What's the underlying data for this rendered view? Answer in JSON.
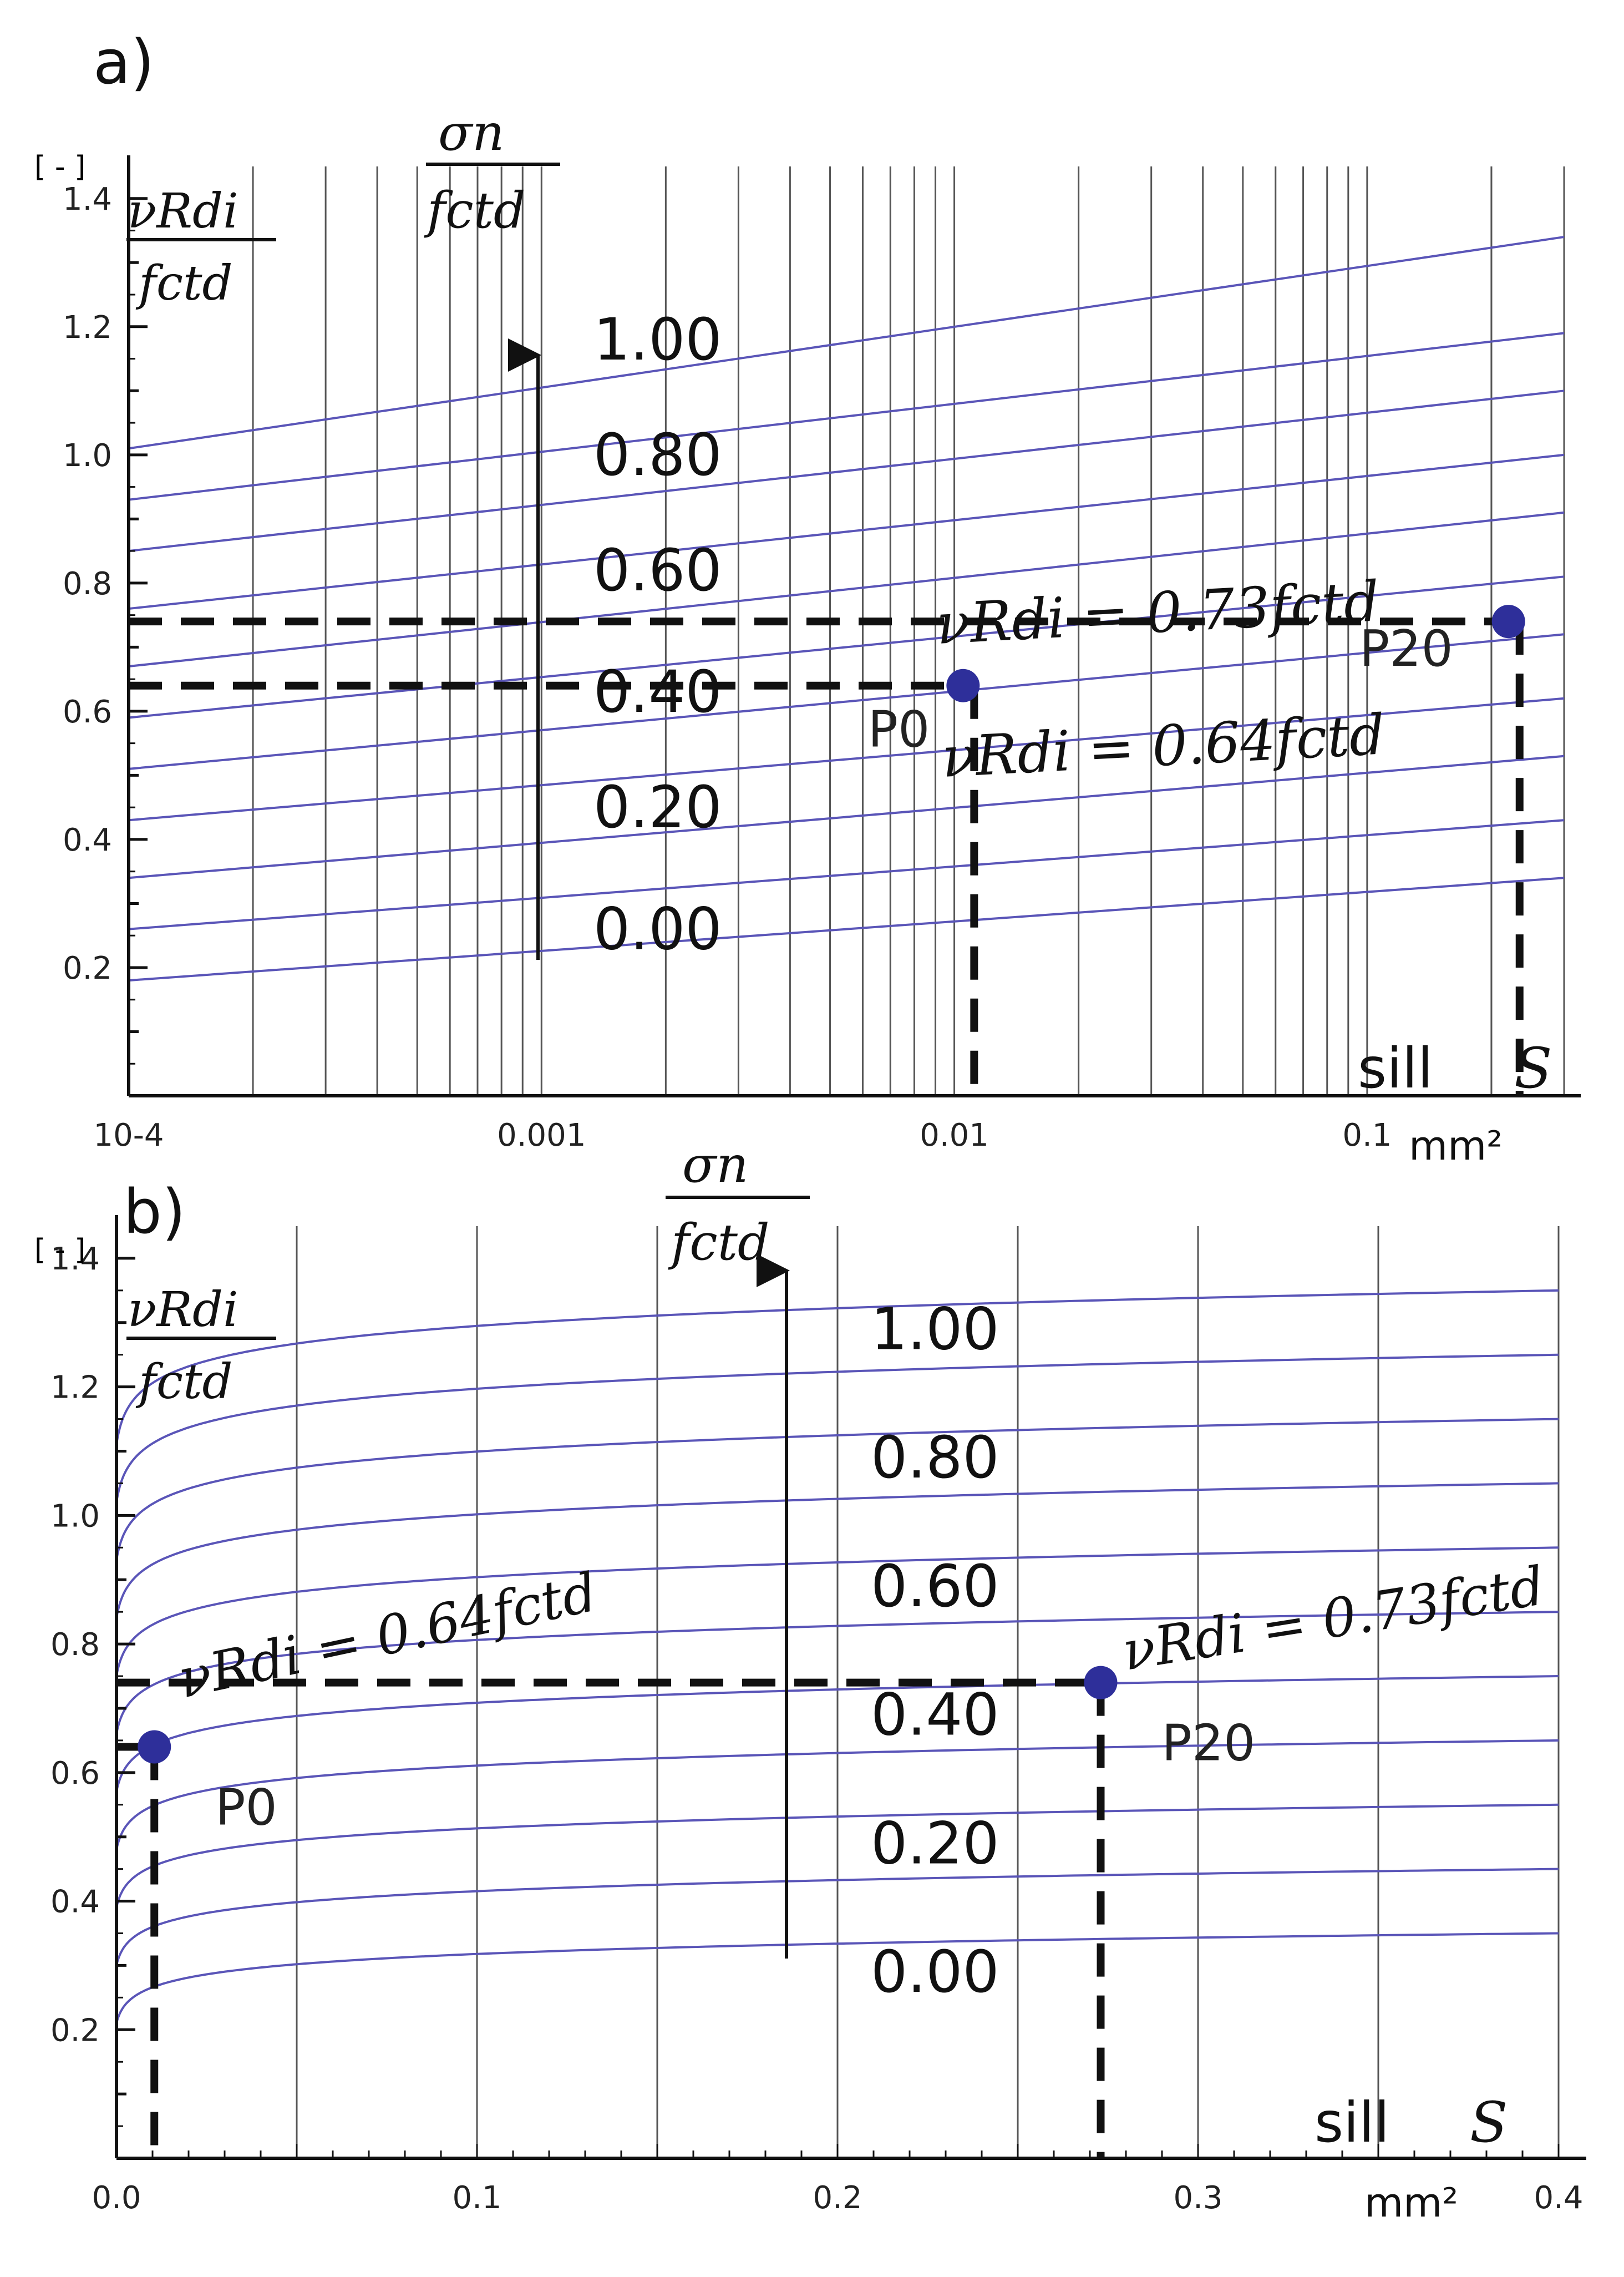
{
  "chart_data": [
    {
      "type": "line",
      "panel_label": "a)",
      "x_scale": "log",
      "xlim": [
        0.0001,
        0.3
      ],
      "ylim": [
        0,
        1.45
      ],
      "x_tick_labels": [
        "10-4",
        "0.001",
        "0.01",
        "0.1"
      ],
      "x_tick_values": [
        0.0001,
        0.001,
        0.01,
        0.1
      ],
      "x_unit": "mm²",
      "y_ticks": [
        0.2,
        0.4,
        0.6,
        0.8,
        1.0,
        1.2,
        1.4
      ],
      "y_tick_labels": [
        "0.2",
        "0.4",
        "0.6",
        "0.8",
        "1.0",
        "1.2",
        "1.4"
      ],
      "y_unit": "[ - ]",
      "ylabel_num": "νRdi",
      "ylabel_den": "fctd",
      "param_label_num": "σn",
      "param_label_den": "fctd",
      "sill_label": "sill",
      "s_label": "S",
      "grid": true,
      "series": [
        {
          "sigma": 0.0,
          "y_at_xmin": 0.18,
          "y_at_xmax": 0.34
        },
        {
          "sigma": 0.1,
          "y_at_xmin": 0.26,
          "y_at_xmax": 0.43
        },
        {
          "sigma": 0.2,
          "y_at_xmin": 0.34,
          "y_at_xmax": 0.53
        },
        {
          "sigma": 0.3,
          "y_at_xmin": 0.43,
          "y_at_xmax": 0.62
        },
        {
          "sigma": 0.4,
          "y_at_xmin": 0.51,
          "y_at_xmax": 0.72
        },
        {
          "sigma": 0.5,
          "y_at_xmin": 0.59,
          "y_at_xmax": 0.81
        },
        {
          "sigma": 0.6,
          "y_at_xmin": 0.67,
          "y_at_xmax": 0.91
        },
        {
          "sigma": 0.7,
          "y_at_xmin": 0.76,
          "y_at_xmax": 1.0
        },
        {
          "sigma": 0.8,
          "y_at_xmin": 0.85,
          "y_at_xmax": 1.1
        },
        {
          "sigma": 0.9,
          "y_at_xmin": 0.93,
          "y_at_xmax": 1.19
        },
        {
          "sigma": 1.0,
          "y_at_xmin": 1.01,
          "y_at_xmax": 1.34
        }
      ],
      "curve_labels": [
        {
          "text": "1.00",
          "y": 1.18
        },
        {
          "text": "0.80",
          "y": 1.0
        },
        {
          "text": "0.60",
          "y": 0.82
        },
        {
          "text": "0.40",
          "y": 0.63
        },
        {
          "text": "0.20",
          "y": 0.45
        },
        {
          "text": "0.00",
          "y": 0.26
        }
      ],
      "points": [
        {
          "label": "P0",
          "x": 0.0105,
          "y": 0.64
        },
        {
          "label": "P20",
          "x": 0.22,
          "y": 0.74
        }
      ],
      "annotations": [
        {
          "lhs": "νRdi",
          "rhs": "0.73fctd"
        },
        {
          "lhs": "νRdi",
          "rhs": "0.64fctd"
        }
      ]
    },
    {
      "type": "line",
      "panel_label": "b)",
      "x_scale": "linear",
      "xlim": [
        0,
        0.4
      ],
      "ylim": [
        0,
        1.45
      ],
      "x_tick_labels": [
        "0.0",
        "0.1",
        "0.2",
        "0.3",
        "0.4"
      ],
      "x_tick_values": [
        0,
        0.1,
        0.2,
        0.3,
        0.4
      ],
      "x_unit": "mm²",
      "y_ticks": [
        0.2,
        0.4,
        0.6,
        0.8,
        1.0,
        1.2,
        1.4
      ],
      "y_tick_labels": [
        "0.2",
        "0.4",
        "0.6",
        "0.8",
        "1.0",
        "1.2",
        "1.4"
      ],
      "y_unit": "[ - ]",
      "ylabel_num": "νRdi",
      "ylabel_den": "fctd",
      "param_label_num": "σn",
      "param_label_den": "fctd",
      "sill_label": "sill",
      "s_label": "S",
      "grid": true,
      "series": [
        {
          "sigma": 0.0,
          "y_start": 0.21,
          "y_end": 0.35
        },
        {
          "sigma": 0.1,
          "y_start": 0.3,
          "y_end": 0.45
        },
        {
          "sigma": 0.2,
          "y_start": 0.39,
          "y_end": 0.55
        },
        {
          "sigma": 0.3,
          "y_start": 0.48,
          "y_end": 0.65
        },
        {
          "sigma": 0.4,
          "y_start": 0.57,
          "y_end": 0.75
        },
        {
          "sigma": 0.5,
          "y_start": 0.66,
          "y_end": 0.85
        },
        {
          "sigma": 0.6,
          "y_start": 0.75,
          "y_end": 0.95
        },
        {
          "sigma": 0.7,
          "y_start": 0.84,
          "y_end": 1.05
        },
        {
          "sigma": 0.8,
          "y_start": 0.93,
          "y_end": 1.15
        },
        {
          "sigma": 0.9,
          "y_start": 1.02,
          "y_end": 1.25
        },
        {
          "sigma": 1.0,
          "y_start": 1.11,
          "y_end": 1.35
        }
      ],
      "curve_labels": [
        {
          "text": "1.00",
          "y": 1.29
        },
        {
          "text": "0.80",
          "y": 1.09
        },
        {
          "text": "0.60",
          "y": 0.89
        },
        {
          "text": "0.40",
          "y": 0.69
        },
        {
          "text": "0.20",
          "y": 0.49
        },
        {
          "text": "0.00",
          "y": 0.29
        }
      ],
      "points": [
        {
          "label": "P0",
          "x": 0.0105,
          "y": 0.64
        },
        {
          "label": "P20",
          "x": 0.273,
          "y": 0.74
        }
      ],
      "annotations": [
        {
          "lhs": "νRdi",
          "rhs": "0.64fctd"
        },
        {
          "lhs": "νRdi",
          "rhs": "0.73fctd"
        }
      ]
    }
  ],
  "colors": {
    "curve": "#5a55b8",
    "point": "#2e2f9a",
    "grid": "#555555",
    "axis": "#111111",
    "dash": "#111111"
  }
}
